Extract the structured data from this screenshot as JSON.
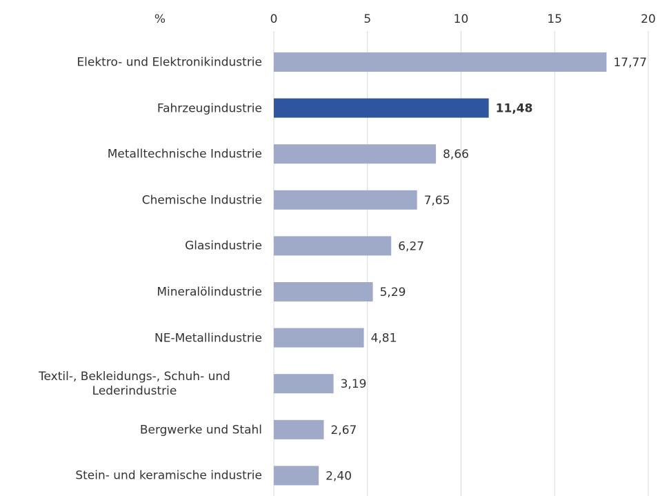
{
  "chart_data": {
    "type": "barh",
    "unit": "%",
    "categories": [
      "Elektro- und Elektronikindustrie",
      "Fahrzeugindustrie",
      "Metalltechnische Industrie",
      "Chemische Industrie",
      "Glasindustrie",
      "Mineralölindustrie",
      "NE-Metallindustrie",
      "Textil-, Bekleidungs-, Schuh- und Lederindustrie",
      "Bergwerke und Stahl",
      "Stein- und keramische industrie"
    ],
    "values": [
      17.77,
      11.48,
      8.66,
      7.65,
      6.27,
      5.29,
      4.81,
      3.19,
      2.67,
      2.4
    ],
    "value_labels": [
      "17,77",
      "11,48",
      "8,66",
      "7,65",
      "6,27",
      "5,29",
      "4,81",
      "3,19",
      "2,67",
      "2,40"
    ],
    "colors": [
      "#9eaac8",
      "#2e56a0",
      "#9eaac8",
      "#9eaac8",
      "#9eaac8",
      "#9eaac8",
      "#9eaac8",
      "#9eaac8",
      "#9eaac8",
      "#9eaac8"
    ],
    "value_label_bold": [
      false,
      true,
      false,
      false,
      false,
      false,
      false,
      false,
      false,
      false
    ],
    "xlim": [
      0,
      20
    ],
    "xticks": [
      0,
      5,
      10,
      15,
      20
    ],
    "grid": true
  }
}
